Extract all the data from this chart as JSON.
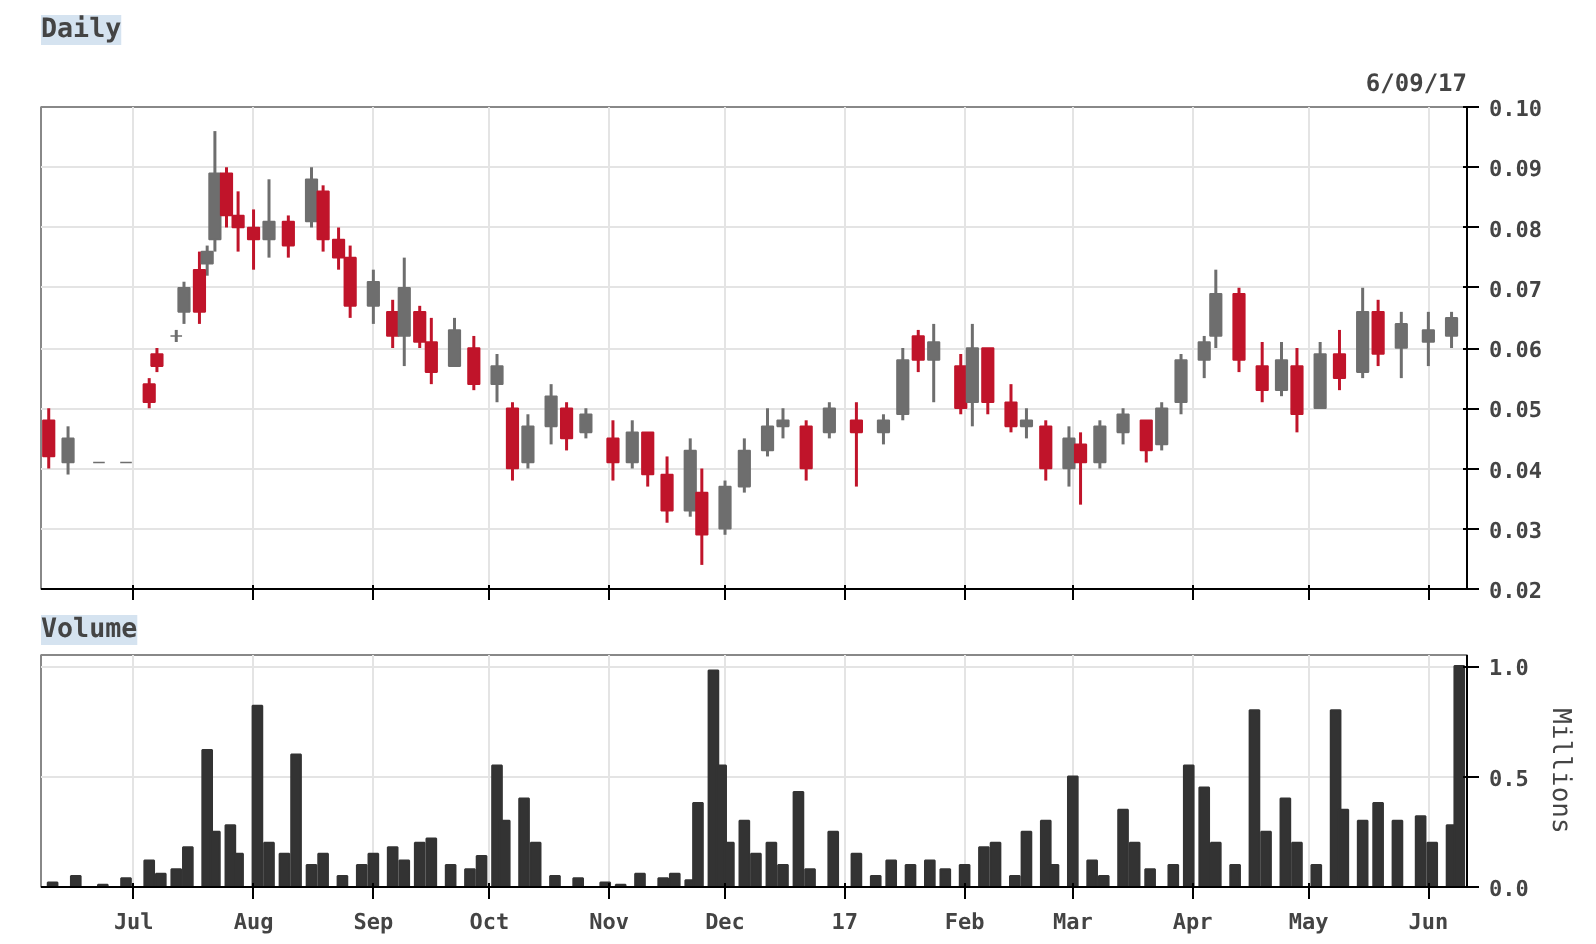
{
  "chart_data": [
    {
      "type": "candlestick",
      "title": "Daily",
      "annotations": [
        "6/09/17"
      ],
      "x": [
        "2016-06-09",
        "2016-06-14",
        "2016-06-22",
        "2016-06-29",
        "2016-07-05",
        "2016-07-07",
        "2016-07-12",
        "2016-07-14",
        "2016-07-18",
        "2016-07-20",
        "2016-07-22",
        "2016-07-25",
        "2016-07-28",
        "2016-08-01",
        "2016-08-05",
        "2016-08-10",
        "2016-08-16",
        "2016-08-19",
        "2016-08-23",
        "2016-08-26",
        "2016-09-01",
        "2016-09-06",
        "2016-09-09",
        "2016-09-13",
        "2016-09-16",
        "2016-09-22",
        "2016-09-27",
        "2016-10-03",
        "2016-10-07",
        "2016-10-11",
        "2016-10-17",
        "2016-10-21",
        "2016-10-26",
        "2016-11-02",
        "2016-11-07",
        "2016-11-11",
        "2016-11-16",
        "2016-11-22",
        "2016-11-25",
        "2016-12-01",
        "2016-12-06",
        "2016-12-12",
        "2016-12-16",
        "2016-12-22",
        "2016-12-28",
        "2017-01-04",
        "2017-01-11",
        "2017-01-16",
        "2017-01-20",
        "2017-01-24",
        "2017-01-31",
        "2017-02-03",
        "2017-02-07",
        "2017-02-13",
        "2017-02-17",
        "2017-02-22",
        "2017-02-28",
        "2017-03-03",
        "2017-03-08",
        "2017-03-14",
        "2017-03-20",
        "2017-03-24",
        "2017-03-29",
        "2017-04-04",
        "2017-04-07",
        "2017-04-13",
        "2017-04-19",
        "2017-04-24",
        "2017-04-28",
        "2017-05-04",
        "2017-05-09",
        "2017-05-15",
        "2017-05-19",
        "2017-05-25",
        "2017-06-01",
        "2017-06-07"
      ],
      "ohlc": [
        [
          0.048,
          0.05,
          0.04,
          0.042
        ],
        [
          0.041,
          0.047,
          0.039,
          0.045
        ],
        [
          0.041,
          0.041,
          0.041,
          0.041
        ],
        [
          0.041,
          0.041,
          0.041,
          0.041
        ],
        [
          0.054,
          0.055,
          0.05,
          0.051
        ],
        [
          0.059,
          0.06,
          0.056,
          0.057
        ],
        [
          0.062,
          0.063,
          0.061,
          0.062
        ],
        [
          0.066,
          0.071,
          0.064,
          0.07
        ],
        [
          0.073,
          0.076,
          0.064,
          0.066
        ],
        [
          0.074,
          0.077,
          0.072,
          0.076
        ],
        [
          0.078,
          0.096,
          0.076,
          0.089
        ],
        [
          0.089,
          0.09,
          0.08,
          0.082
        ],
        [
          0.082,
          0.086,
          0.076,
          0.08
        ],
        [
          0.08,
          0.083,
          0.073,
          0.078
        ],
        [
          0.078,
          0.088,
          0.075,
          0.081
        ],
        [
          0.081,
          0.082,
          0.075,
          0.077
        ],
        [
          0.081,
          0.09,
          0.08,
          0.088
        ],
        [
          0.086,
          0.087,
          0.076,
          0.078
        ],
        [
          0.078,
          0.08,
          0.073,
          0.075
        ],
        [
          0.075,
          0.077,
          0.065,
          0.067
        ],
        [
          0.067,
          0.073,
          0.064,
          0.071
        ],
        [
          0.066,
          0.068,
          0.06,
          0.062
        ],
        [
          0.062,
          0.075,
          0.057,
          0.07
        ],
        [
          0.066,
          0.067,
          0.06,
          0.061
        ],
        [
          0.061,
          0.065,
          0.054,
          0.056
        ],
        [
          0.057,
          0.065,
          0.057,
          0.063
        ],
        [
          0.06,
          0.062,
          0.053,
          0.054
        ],
        [
          0.054,
          0.059,
          0.051,
          0.057
        ],
        [
          0.05,
          0.051,
          0.038,
          0.04
        ],
        [
          0.041,
          0.049,
          0.04,
          0.047
        ],
        [
          0.047,
          0.054,
          0.044,
          0.052
        ],
        [
          0.05,
          0.051,
          0.043,
          0.045
        ],
        [
          0.046,
          0.05,
          0.045,
          0.049
        ],
        [
          0.045,
          0.048,
          0.038,
          0.041
        ],
        [
          0.041,
          0.048,
          0.04,
          0.046
        ],
        [
          0.046,
          0.046,
          0.037,
          0.039
        ],
        [
          0.039,
          0.042,
          0.031,
          0.033
        ],
        [
          0.033,
          0.045,
          0.032,
          0.043
        ],
        [
          0.036,
          0.04,
          0.024,
          0.029
        ],
        [
          0.03,
          0.038,
          0.029,
          0.037
        ],
        [
          0.037,
          0.045,
          0.036,
          0.043
        ],
        [
          0.043,
          0.05,
          0.042,
          0.047
        ],
        [
          0.047,
          0.05,
          0.045,
          0.048
        ],
        [
          0.047,
          0.048,
          0.038,
          0.04
        ],
        [
          0.046,
          0.051,
          0.045,
          0.05
        ],
        [
          0.048,
          0.051,
          0.037,
          0.046
        ],
        [
          0.046,
          0.049,
          0.044,
          0.048
        ],
        [
          0.049,
          0.06,
          0.048,
          0.058
        ],
        [
          0.062,
          0.063,
          0.056,
          0.058
        ],
        [
          0.058,
          0.064,
          0.051,
          0.061
        ],
        [
          0.057,
          0.059,
          0.049,
          0.05
        ],
        [
          0.051,
          0.064,
          0.047,
          0.06
        ],
        [
          0.06,
          0.06,
          0.049,
          0.051
        ],
        [
          0.051,
          0.054,
          0.046,
          0.047
        ],
        [
          0.047,
          0.05,
          0.045,
          0.048
        ],
        [
          0.047,
          0.048,
          0.038,
          0.04
        ],
        [
          0.04,
          0.047,
          0.037,
          0.045
        ],
        [
          0.044,
          0.046,
          0.034,
          0.041
        ],
        [
          0.041,
          0.048,
          0.04,
          0.047
        ],
        [
          0.046,
          0.05,
          0.044,
          0.049
        ],
        [
          0.048,
          0.048,
          0.041,
          0.043
        ],
        [
          0.044,
          0.051,
          0.043,
          0.05
        ],
        [
          0.051,
          0.059,
          0.049,
          0.058
        ],
        [
          0.058,
          0.062,
          0.055,
          0.061
        ],
        [
          0.062,
          0.073,
          0.06,
          0.069
        ],
        [
          0.069,
          0.07,
          0.056,
          0.058
        ],
        [
          0.057,
          0.061,
          0.051,
          0.053
        ],
        [
          0.053,
          0.061,
          0.052,
          0.058
        ],
        [
          0.057,
          0.06,
          0.046,
          0.049
        ],
        [
          0.05,
          0.061,
          0.05,
          0.059
        ],
        [
          0.059,
          0.063,
          0.053,
          0.055
        ],
        [
          0.056,
          0.07,
          0.055,
          0.066
        ],
        [
          0.066,
          0.068,
          0.057,
          0.059
        ],
        [
          0.06,
          0.066,
          0.055,
          0.064
        ],
        [
          0.061,
          0.066,
          0.057,
          0.063
        ],
        [
          0.062,
          0.066,
          0.06,
          0.065
        ]
      ],
      "colors": [
        "#c0142a",
        "#6e6e6e",
        "#6e6e6e",
        "#6e6e6e",
        "#c0142a",
        "#c0142a",
        "#6e6e6e",
        "#6e6e6e",
        "#c0142a",
        "#6e6e6e",
        "#6e6e6e",
        "#c0142a",
        "#c0142a",
        "#c0142a",
        "#6e6e6e",
        "#c0142a",
        "#6e6e6e",
        "#c0142a",
        "#c0142a",
        "#c0142a",
        "#6e6e6e",
        "#c0142a",
        "#6e6e6e",
        "#c0142a",
        "#c0142a",
        "#6e6e6e",
        "#c0142a",
        "#6e6e6e",
        "#c0142a",
        "#6e6e6e",
        "#6e6e6e",
        "#c0142a",
        "#6e6e6e",
        "#c0142a",
        "#6e6e6e",
        "#c0142a",
        "#c0142a",
        "#6e6e6e",
        "#c0142a",
        "#6e6e6e",
        "#6e6e6e",
        "#6e6e6e",
        "#6e6e6e",
        "#c0142a",
        "#6e6e6e",
        "#c0142a",
        "#6e6e6e",
        "#6e6e6e",
        "#c0142a",
        "#6e6e6e",
        "#c0142a",
        "#6e6e6e",
        "#c0142a",
        "#c0142a",
        "#6e6e6e",
        "#c0142a",
        "#6e6e6e",
        "#c0142a",
        "#6e6e6e",
        "#6e6e6e",
        "#c0142a",
        "#6e6e6e",
        "#6e6e6e",
        "#6e6e6e",
        "#6e6e6e",
        "#c0142a",
        "#c0142a",
        "#6e6e6e",
        "#c0142a",
        "#6e6e6e",
        "#c0142a",
        "#6e6e6e",
        "#c0142a",
        "#6e6e6e",
        "#6e6e6e",
        "#6e6e6e"
      ],
      "xlim": [
        "2016-06-07",
        "2017-06-11"
      ],
      "xticks": [
        {
          "value": "2016-07-01",
          "label": null
        },
        {
          "value": "2016-08-01",
          "label": null
        },
        {
          "value": "2016-09-01",
          "label": null
        },
        {
          "value": "2016-10-01",
          "label": null
        },
        {
          "value": "2016-11-01",
          "label": null
        },
        {
          "value": "2016-12-01",
          "label": null
        },
        {
          "value": "2017-01-01",
          "label": null
        },
        {
          "value": "2017-02-01",
          "label": null
        },
        {
          "value": "2017-03-01",
          "label": null
        },
        {
          "value": "2017-04-01",
          "label": null
        },
        {
          "value": "2017-05-01",
          "label": null
        },
        {
          "value": "2017-06-01",
          "label": null
        }
      ],
      "ylim": [
        0.02,
        0.1
      ],
      "yticks": [
        {
          "value": 0.02,
          "label": "0.02"
        },
        {
          "value": 0.03,
          "label": "0.03"
        },
        {
          "value": 0.04,
          "label": "0.04"
        },
        {
          "value": 0.05,
          "label": "0.05"
        },
        {
          "value": 0.06,
          "label": "0.06"
        },
        {
          "value": 0.07,
          "label": "0.07"
        },
        {
          "value": 0.08,
          "label": "0.08"
        },
        {
          "value": 0.09,
          "label": "0.09"
        },
        {
          "value": 0.1,
          "label": "0.10"
        }
      ],
      "grid": true,
      "tick_labels": "y"
    },
    {
      "type": "bar",
      "title": "Volume",
      "ylabel": "Millions",
      "color": "#333333",
      "x": [
        "2016-06-10",
        "2016-06-16",
        "2016-06-23",
        "2016-06-29",
        "2016-07-05",
        "2016-07-08",
        "2016-07-12",
        "2016-07-15",
        "2016-07-20",
        "2016-07-22",
        "2016-07-26",
        "2016-07-28",
        "2016-08-02",
        "2016-08-05",
        "2016-08-09",
        "2016-08-12",
        "2016-08-16",
        "2016-08-19",
        "2016-08-24",
        "2016-08-29",
        "2016-09-01",
        "2016-09-06",
        "2016-09-09",
        "2016-09-13",
        "2016-09-16",
        "2016-09-21",
        "2016-09-26",
        "2016-09-29",
        "2016-10-03",
        "2016-10-05",
        "2016-10-10",
        "2016-10-13",
        "2016-10-18",
        "2016-10-24",
        "2016-10-31",
        "2016-11-04",
        "2016-11-09",
        "2016-11-15",
        "2016-11-18",
        "2016-11-22",
        "2016-11-24",
        "2016-11-28",
        "2016-11-30",
        "2016-12-02",
        "2016-12-06",
        "2016-12-09",
        "2016-12-13",
        "2016-12-16",
        "2016-12-20",
        "2016-12-23",
        "2016-12-29",
        "2017-01-04",
        "2017-01-09",
        "2017-01-13",
        "2017-01-18",
        "2017-01-23",
        "2017-01-27",
        "2017-02-01",
        "2017-02-06",
        "2017-02-09",
        "2017-02-14",
        "2017-02-17",
        "2017-02-22",
        "2017-02-24",
        "2017-03-01",
        "2017-03-06",
        "2017-03-09",
        "2017-03-14",
        "2017-03-17",
        "2017-03-21",
        "2017-03-27",
        "2017-03-31",
        "2017-04-04",
        "2017-04-07",
        "2017-04-12",
        "2017-04-17",
        "2017-04-20",
        "2017-04-25",
        "2017-04-28",
        "2017-05-03",
        "2017-05-08",
        "2017-05-10",
        "2017-05-15",
        "2017-05-19",
        "2017-05-24",
        "2017-05-30",
        "2017-06-02",
        "2017-06-07",
        "2017-06-09"
      ],
      "values": [
        0.02,
        0.05,
        0.01,
        0.04,
        0.12,
        0.06,
        0.08,
        0.18,
        0.62,
        0.25,
        0.28,
        0.15,
        0.82,
        0.2,
        0.15,
        0.6,
        0.1,
        0.15,
        0.05,
        0.1,
        0.15,
        0.18,
        0.12,
        0.2,
        0.22,
        0.1,
        0.08,
        0.14,
        0.55,
        0.3,
        0.4,
        0.2,
        0.05,
        0.04,
        0.02,
        0.01,
        0.06,
        0.04,
        0.06,
        0.03,
        0.38,
        0.98,
        0.55,
        0.2,
        0.3,
        0.15,
        0.2,
        0.1,
        0.43,
        0.08,
        0.25,
        0.15,
        0.05,
        0.12,
        0.1,
        0.12,
        0.08,
        0.1,
        0.18,
        0.2,
        0.05,
        0.25,
        0.3,
        0.1,
        0.5,
        0.12,
        0.05,
        0.35,
        0.2,
        0.08,
        0.1,
        0.55,
        0.45,
        0.2,
        0.1,
        0.8,
        0.25,
        0.4,
        0.2,
        0.1,
        0.8,
        0.35,
        0.3,
        0.38,
        0.3,
        0.32,
        0.2,
        0.28,
        1.0
      ],
      "xlim": [
        "2016-06-07",
        "2017-06-11"
      ],
      "xticks": [
        {
          "value": "2016-07-01",
          "label": "Jul"
        },
        {
          "value": "2016-08-01",
          "label": "Aug"
        },
        {
          "value": "2016-09-01",
          "label": "Sep"
        },
        {
          "value": "2016-10-01",
          "label": "Oct"
        },
        {
          "value": "2016-11-01",
          "label": "Nov"
        },
        {
          "value": "2016-12-01",
          "label": "Dec"
        },
        {
          "value": "2017-01-01",
          "label": "17"
        },
        {
          "value": "2017-02-01",
          "label": "Feb"
        },
        {
          "value": "2017-03-01",
          "label": "Mar"
        },
        {
          "value": "2017-04-01",
          "label": "Apr"
        },
        {
          "value": "2017-05-01",
          "label": "May"
        },
        {
          "value": "2017-06-01",
          "label": "Jun"
        }
      ],
      "ylim": [
        0,
        1.05
      ],
      "yticks": [
        {
          "value": 0,
          "label": "0.0"
        },
        {
          "value": 0.5,
          "label": "0.5"
        },
        {
          "value": 1.0,
          "label": "1.0"
        }
      ],
      "grid": true
    }
  ]
}
